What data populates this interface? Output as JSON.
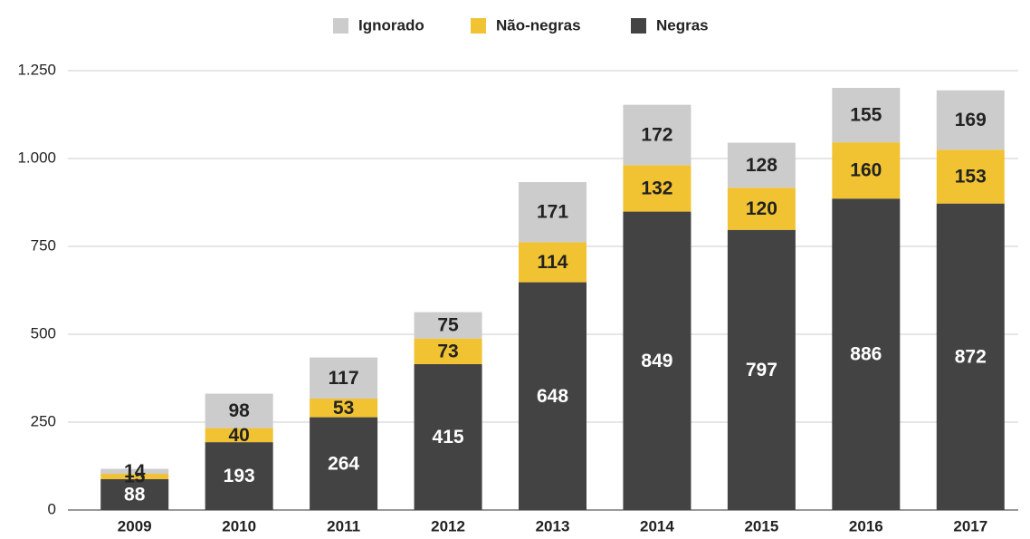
{
  "chart_data": {
    "type": "stacked_bar",
    "categories": [
      "2009",
      "2010",
      "2011",
      "2012",
      "2013",
      "2014",
      "2015",
      "2016",
      "2017"
    ],
    "series": [
      {
        "name": "Negras",
        "color": "#434343",
        "values": [
          88,
          193,
          264,
          415,
          648,
          849,
          797,
          886,
          872
        ]
      },
      {
        "name": "Não-negras",
        "color": "#f1c232",
        "values": [
          15,
          40,
          53,
          73,
          114,
          132,
          120,
          160,
          153
        ]
      },
      {
        "name": "Ignorado",
        "color": "#cccccc",
        "values": [
          14,
          98,
          117,
          75,
          171,
          172,
          128,
          155,
          169
        ]
      }
    ],
    "ylim": [
      0,
      1250
    ],
    "yticks": [
      0,
      250,
      500,
      750,
      {
        "value": 1000,
        "label": "1.000"
      },
      {
        "value": 1250,
        "label": "1.250"
      }
    ],
    "grid": true,
    "legend": "top"
  }
}
